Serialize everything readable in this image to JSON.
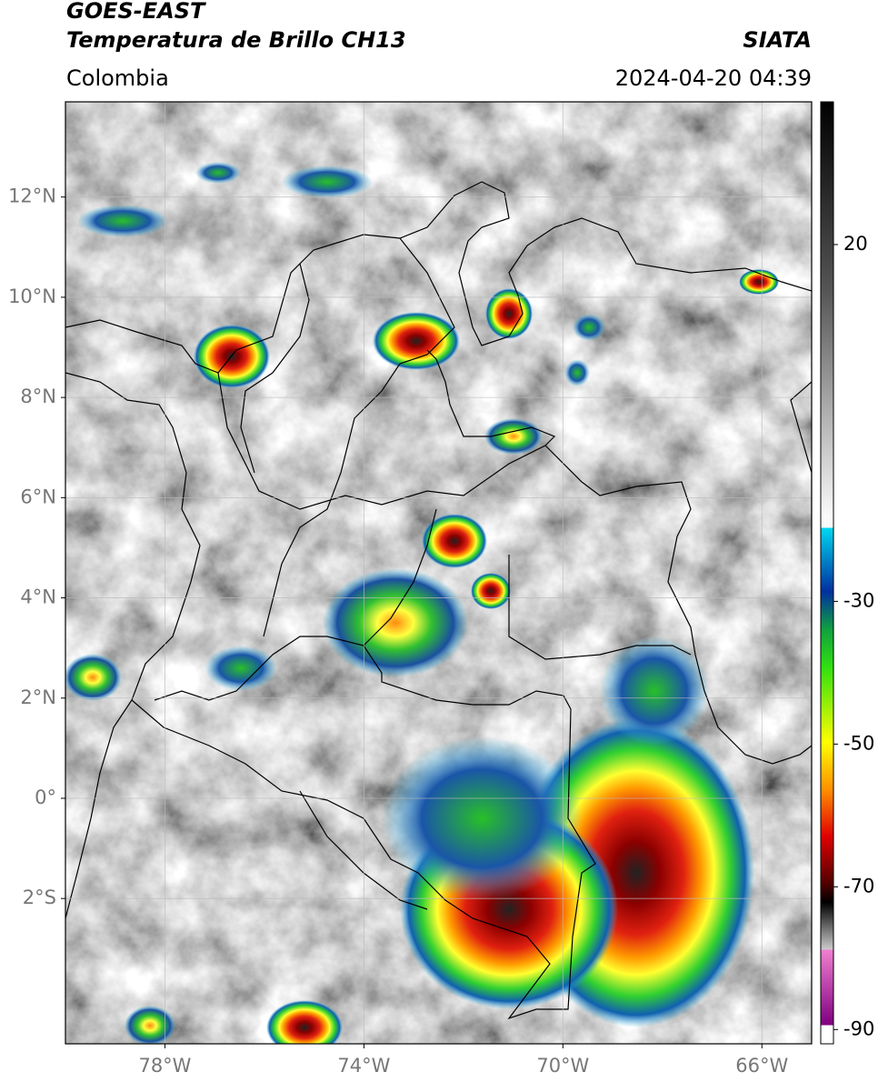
{
  "header": {
    "satellite": "GOES-EAST",
    "product": "Temperatura de Brillo CH13",
    "source": "SIATA",
    "region": "Colombia",
    "datetime": "2024-04-20 04:39"
  },
  "map": {
    "lon_range": [
      -80,
      -65
    ],
    "lat_range": [
      -4.9,
      13.9
    ],
    "lat_ticks": [
      {
        "value": 12,
        "label": "12°N"
      },
      {
        "value": 10,
        "label": "10°N"
      },
      {
        "value": 8,
        "label": "8°N"
      },
      {
        "value": 6,
        "label": "6°N"
      },
      {
        "value": 4,
        "label": "4°N"
      },
      {
        "value": 2,
        "label": "2°N"
      },
      {
        "value": 0,
        "label": "0°"
      },
      {
        "value": -2,
        "label": "2°S"
      }
    ],
    "lon_ticks": [
      {
        "value": -78,
        "label": "78°W"
      },
      {
        "value": -74,
        "label": "74°W"
      },
      {
        "value": -70,
        "label": "70°W"
      },
      {
        "value": -66,
        "label": "66°W"
      }
    ]
  },
  "colorbar": {
    "range": [
      -92,
      40
    ],
    "ticks": [
      20,
      -30,
      -50,
      -70,
      -90
    ]
  }
}
